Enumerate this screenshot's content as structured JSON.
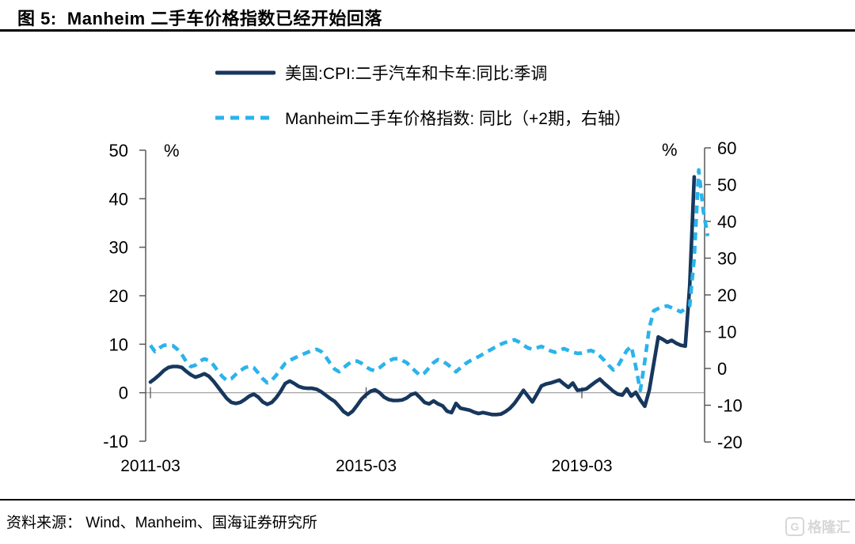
{
  "header": {
    "title": "图 5:  Manheim 二手车价格指数已经开始回落"
  },
  "legend": [
    {
      "label": "美国:CPI:二手汽车和卡车:同比:季调",
      "color": "#17375D",
      "style": "solid"
    },
    {
      "label": "Manheim二手车价格指数: 同比（+2期，右轴）",
      "color": "#2BB3EB",
      "style": "dashed"
    }
  ],
  "chart_data": {
    "type": "line",
    "title": "Manheim 二手车价格指数已经开始回落",
    "grid": "off",
    "left_axis": {
      "label": "%",
      "ticks": [
        50,
        40,
        30,
        20,
        10,
        0,
        -10
      ],
      "ylim": [
        -10,
        50
      ]
    },
    "right_axis": {
      "label": "%",
      "ticks": [
        60,
        50,
        40,
        30,
        20,
        10,
        0,
        -10,
        -20
      ],
      "ylim": [
        -20,
        60
      ]
    },
    "x_axis": {
      "tick_labels": [
        "2011-03",
        "2015-03",
        "2019-03"
      ],
      "tick_month_index": [
        0,
        48,
        96
      ],
      "start_month": "2011-03",
      "months_per_tick": 48
    },
    "series": [
      {
        "name": "美国:CPI:二手汽车和卡车:同比:季调",
        "axis": "left",
        "color": "#17375D",
        "dash": false,
        "start_month": "2011-03",
        "values": [
          2.2,
          2.9,
          3.7,
          4.6,
          5.2,
          5.4,
          5.4,
          5.2,
          4.4,
          3.7,
          3.2,
          3.5,
          3.9,
          3.4,
          2.4,
          1.2,
          0.0,
          -1.2,
          -2.0,
          -2.2,
          -2.0,
          -1.4,
          -0.7,
          -0.3,
          -0.9,
          -1.9,
          -2.4,
          -2.0,
          -1.0,
          0.3,
          1.9,
          2.4,
          1.9,
          1.3,
          1.0,
          0.9,
          0.9,
          0.7,
          0.2,
          -0.5,
          -1.2,
          -1.8,
          -2.8,
          -3.9,
          -4.5,
          -3.8,
          -2.6,
          -1.3,
          -0.4,
          0.3,
          0.6,
          0.0,
          -0.9,
          -1.4,
          -1.6,
          -1.6,
          -1.5,
          -1.1,
          -0.4,
          -0.1,
          -1.0,
          -2.0,
          -2.3,
          -1.7,
          -2.3,
          -2.7,
          -3.8,
          -4.1,
          -2.2,
          -3.2,
          -3.4,
          -3.6,
          -4.0,
          -4.3,
          -4.1,
          -4.3,
          -4.5,
          -4.5,
          -4.4,
          -3.9,
          -3.2,
          -2.2,
          -0.9,
          0.5,
          -0.7,
          -1.9,
          -0.3,
          1.4,
          1.8,
          2.0,
          2.3,
          2.6,
          1.8,
          1.1,
          2.0,
          0.5,
          0.6,
          0.8,
          1.5,
          2.2,
          2.8,
          1.9,
          1.1,
          0.3,
          -0.3,
          -0.5,
          0.8,
          -0.7,
          0.1,
          -1.5,
          -2.8,
          0.5,
          6.0,
          11.5,
          11.0,
          10.4,
          10.8,
          10.2,
          9.8,
          9.6,
          22.0,
          44.5
        ]
      },
      {
        "name": "Manheim二手车价格指数: 同比（+2期，右轴）",
        "axis": "right",
        "color": "#2BB3EB",
        "dash": true,
        "start_month": "2011-03",
        "values": [
          6.3,
          4.6,
          5.6,
          6.3,
          6.4,
          6.2,
          5.2,
          3.8,
          1.8,
          0.5,
          0.9,
          2.0,
          2.6,
          2.2,
          1.0,
          -0.7,
          -2.2,
          -3.3,
          -2.8,
          -1.6,
          -0.6,
          0.2,
          0.6,
          0.2,
          -1.2,
          -2.8,
          -3.9,
          -3.2,
          -1.8,
          -0.2,
          1.4,
          2.2,
          2.8,
          3.4,
          3.9,
          4.4,
          4.9,
          5.2,
          4.6,
          3.2,
          1.4,
          -0.2,
          -0.9,
          0.2,
          1.2,
          2.0,
          2.0,
          1.4,
          0.4,
          -0.3,
          -0.6,
          0.2,
          1.2,
          2.0,
          2.6,
          2.7,
          2.2,
          1.6,
          0.4,
          -0.8,
          -1.9,
          -1.2,
          0.2,
          1.6,
          2.4,
          2.0,
          1.2,
          0.2,
          -0.9,
          0.2,
          1.2,
          2.0,
          2.6,
          3.2,
          3.9,
          4.6,
          5.3,
          6.0,
          6.6,
          7.1,
          7.5,
          7.8,
          7.2,
          6.3,
          5.6,
          5.2,
          5.6,
          6.0,
          5.4,
          4.8,
          4.4,
          4.9,
          5.4,
          4.9,
          4.4,
          4.1,
          4.2,
          4.6,
          4.9,
          4.4,
          3.4,
          2.2,
          0.8,
          -0.4,
          0.6,
          2.8,
          4.9,
          6.0,
          0.5,
          -6.0,
          2.0,
          11.0,
          15.7,
          16.3,
          16.8,
          17.0,
          16.5,
          16.0,
          15.4,
          16.2,
          17.0,
          30.0,
          54.0,
          43.0,
          36.0
        ]
      }
    ]
  },
  "footer": {
    "source": "资料来源： Wind、Manheim、国海证券研究所",
    "watermark_text": "格隆汇",
    "watermark_icon": "G"
  }
}
